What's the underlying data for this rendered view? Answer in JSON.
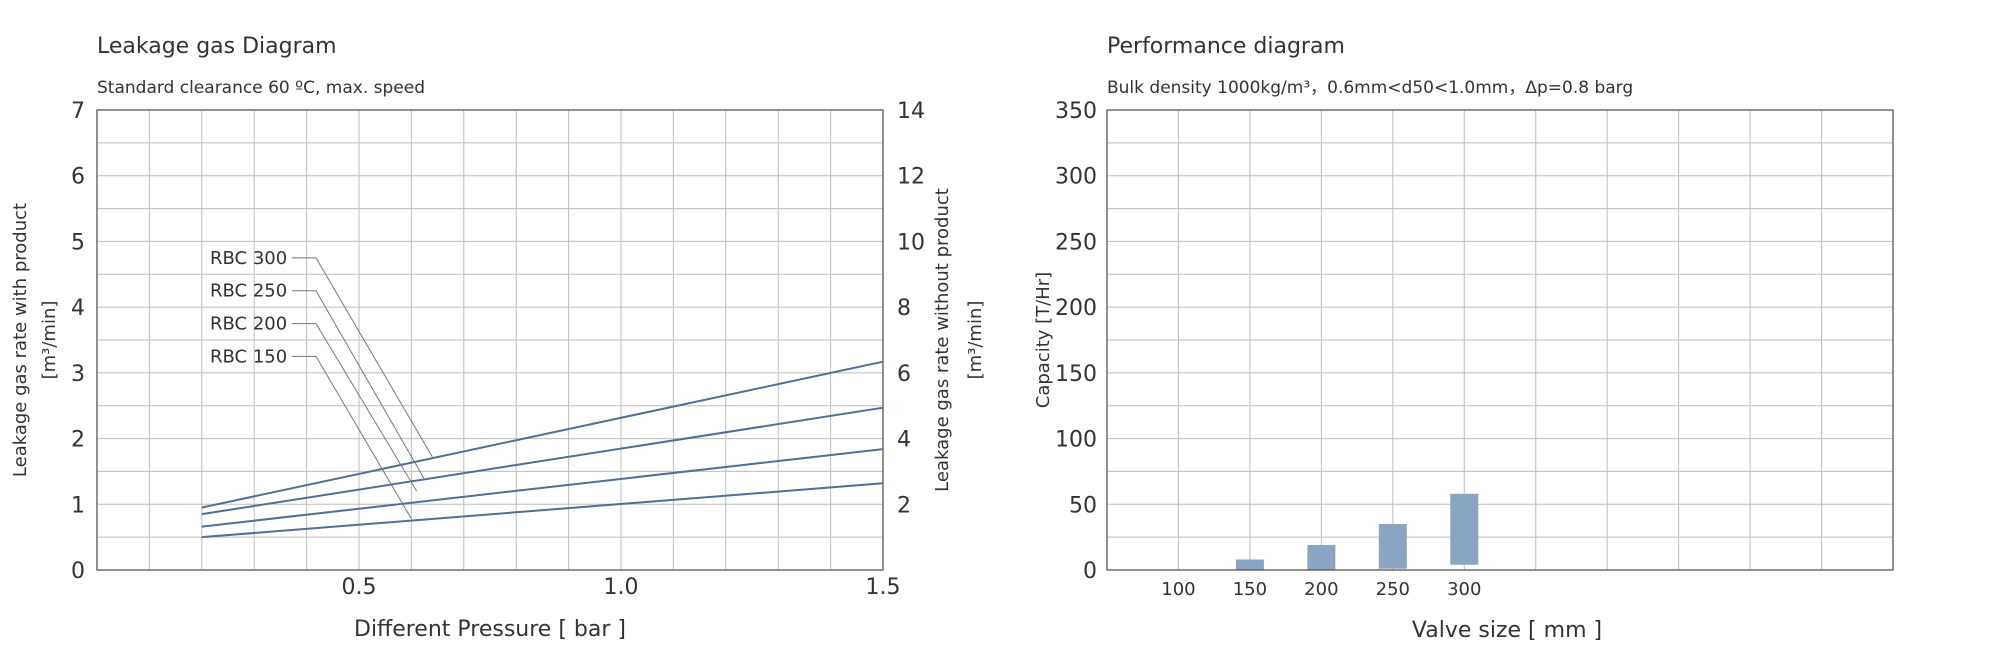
{
  "colors": {
    "line": "#4f6f94",
    "bar": "#8aa5c4",
    "grid": "#bdbdbd",
    "axis": "#555555",
    "text": "#333333"
  },
  "chart_data": [
    {
      "type": "line",
      "title": "Leakage gas Diagram",
      "subtitle": "Standard clearance  60 ºC, max. speed",
      "xlabel": "Different Pressure [ bar ]",
      "ylabel_line1": "Leakage gas rate with product",
      "ylabel_line2": "[m³/min]",
      "y2label_line1": "Leakage gas rate without product",
      "y2label_line2": "[m³/min]",
      "xlim": [
        0,
        1.5
      ],
      "ylim": [
        0,
        7
      ],
      "y2lim": [
        0,
        14
      ],
      "x_ticks": [
        {
          "value": 0.5,
          "label": "0.5"
        },
        {
          "value": 1.0,
          "label": "1.0"
        },
        {
          "value": 1.5,
          "label": "1.5"
        }
      ],
      "y_ticks": [
        {
          "value": 0,
          "label": "0"
        },
        {
          "value": 1,
          "label": "1"
        },
        {
          "value": 2,
          "label": "2"
        },
        {
          "value": 3,
          "label": "3"
        },
        {
          "value": 4,
          "label": "4"
        },
        {
          "value": 5,
          "label": "5"
        },
        {
          "value": 6,
          "label": "6"
        },
        {
          "value": 7,
          "label": "7"
        }
      ],
      "y2_ticks": [
        {
          "value": 2,
          "label": "2"
        },
        {
          "value": 4,
          "label": "4"
        },
        {
          "value": 6,
          "label": "6"
        },
        {
          "value": 8,
          "label": "8"
        },
        {
          "value": 10,
          "label": "10"
        },
        {
          "value": 12,
          "label": "12"
        },
        {
          "value": 14,
          "label": "14"
        }
      ],
      "grid": true,
      "series": [
        {
          "name": "RBC 300",
          "x": [
            0.2,
            1.5
          ],
          "y": [
            0.95,
            3.17
          ],
          "label_y": 4.75,
          "leader_end": [
            0.64,
            1.72
          ]
        },
        {
          "name": "RBC 250",
          "x": [
            0.2,
            1.5
          ],
          "y": [
            0.85,
            2.47
          ],
          "label_y": 4.25,
          "leader_end": [
            0.625,
            1.38
          ]
        },
        {
          "name": "RBC 200",
          "x": [
            0.2,
            1.5
          ],
          "y": [
            0.66,
            1.84
          ],
          "label_y": 3.75,
          "leader_end": [
            0.61,
            1.2
          ]
        },
        {
          "name": "RBC 150",
          "x": [
            0.2,
            1.5
          ],
          "y": [
            0.5,
            1.32
          ],
          "label_y": 3.25,
          "leader_end": [
            0.6,
            0.78
          ]
        }
      ]
    },
    {
      "type": "bar",
      "title": "Performance diagram",
      "subtitle": "Bulk density 1000kg/m³，0.6mm<d50<1.0mm，Δp=0.8 barg",
      "xlabel": "Valve size [ mm ]",
      "ylabel": "Capacity [T/Hr]",
      "ylim": [
        0,
        350
      ],
      "y_ticks": [
        {
          "value": 0,
          "label": "0"
        },
        {
          "value": 50,
          "label": "50"
        },
        {
          "value": 100,
          "label": "100"
        },
        {
          "value": 150,
          "label": "150"
        },
        {
          "value": 200,
          "label": "200"
        },
        {
          "value": 250,
          "label": "250"
        },
        {
          "value": 300,
          "label": "300"
        },
        {
          "value": 350,
          "label": "350"
        }
      ],
      "grid": true,
      "categories": [
        "100",
        "150",
        "200",
        "250",
        "300"
      ],
      "ranges": [
        {
          "category": "100",
          "min": 0,
          "max": 0
        },
        {
          "category": "150",
          "min": 0,
          "max": 8
        },
        {
          "category": "200",
          "min": 0,
          "max": 19
        },
        {
          "category": "250",
          "min": 1,
          "max": 35
        },
        {
          "category": "300",
          "min": 4,
          "max": 58
        }
      ]
    }
  ]
}
